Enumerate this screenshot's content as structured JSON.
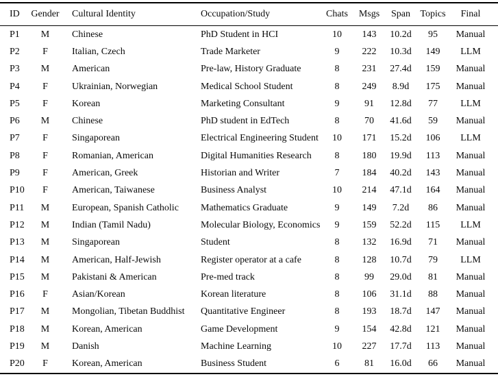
{
  "table": {
    "columns": [
      {
        "label": "ID",
        "align": "left"
      },
      {
        "label": "Gender",
        "align": "center"
      },
      {
        "label": "Cultural Identity",
        "align": "left"
      },
      {
        "label": "Occupation/Study",
        "align": "left"
      },
      {
        "label": "Chats",
        "align": "center"
      },
      {
        "label": "Msgs",
        "align": "center"
      },
      {
        "label": "Span",
        "align": "center"
      },
      {
        "label": "Topics",
        "align": "center"
      },
      {
        "label": "Final",
        "align": "center"
      }
    ],
    "rows": [
      [
        "P1",
        "M",
        "Chinese",
        "PhD Student in HCI",
        "10",
        "143",
        "10.2d",
        "95",
        "Manual"
      ],
      [
        "P2",
        "F",
        "Italian, Czech",
        "Trade Marketer",
        "9",
        "222",
        "10.3d",
        "149",
        "LLM"
      ],
      [
        "P3",
        "M",
        "American",
        "Pre-law, History Graduate",
        "8",
        "231",
        "27.4d",
        "159",
        "Manual"
      ],
      [
        "P4",
        "F",
        "Ukrainian, Norwegian",
        "Medical School Student",
        "8",
        "249",
        "8.9d",
        "175",
        "Manual"
      ],
      [
        "P5",
        "F",
        "Korean",
        "Marketing Consultant",
        "9",
        "91",
        "12.8d",
        "77",
        "LLM"
      ],
      [
        "P6",
        "M",
        "Chinese",
        "PhD student in EdTech",
        "8",
        "70",
        "41.6d",
        "59",
        "Manual"
      ],
      [
        "P7",
        "F",
        "Singaporean",
        "Electrical Engineering Student",
        "10",
        "171",
        "15.2d",
        "106",
        "LLM"
      ],
      [
        "P8",
        "F",
        "Romanian, American",
        "Digital Humanities Research",
        "8",
        "180",
        "19.9d",
        "113",
        "Manual"
      ],
      [
        "P9",
        "F",
        "American, Greek",
        "Historian and Writer",
        "7",
        "184",
        "40.2d",
        "143",
        "Manual"
      ],
      [
        "P10",
        "F",
        "American, Taiwanese",
        "Business Analyst",
        "10",
        "214",
        "47.1d",
        "164",
        "Manual"
      ],
      [
        "P11",
        "M",
        "European, Spanish Catholic",
        "Mathematics Graduate",
        "9",
        "149",
        "7.2d",
        "86",
        "Manual"
      ],
      [
        "P12",
        "M",
        "Indian (Tamil Nadu)",
        "Molecular Biology, Economics",
        "9",
        "159",
        "52.2d",
        "115",
        "LLM"
      ],
      [
        "P13",
        "M",
        "Singaporean",
        "Student",
        "8",
        "132",
        "16.9d",
        "71",
        "Manual"
      ],
      [
        "P14",
        "M",
        "American, Half-Jewish",
        "Register operator at a cafe",
        "8",
        "128",
        "10.7d",
        "79",
        "LLM"
      ],
      [
        "P15",
        "M",
        "Pakistani & American",
        "Pre-med track",
        "8",
        "99",
        "29.0d",
        "81",
        "Manual"
      ],
      [
        "P16",
        "F",
        "Asian/Korean",
        "Korean literature",
        "8",
        "106",
        "31.1d",
        "88",
        "Manual"
      ],
      [
        "P17",
        "M",
        "Mongolian, Tibetan Buddhist",
        "Quantitative Engineer",
        "8",
        "193",
        "18.7d",
        "147",
        "Manual"
      ],
      [
        "P18",
        "M",
        "Korean, American",
        "Game Development",
        "9",
        "154",
        "42.8d",
        "121",
        "Manual"
      ],
      [
        "P19",
        "M",
        "Danish",
        "Machine Learning",
        "10",
        "227",
        "17.7d",
        "113",
        "Manual"
      ],
      [
        "P20",
        "F",
        "Korean, American",
        "Business Student",
        "6",
        "81",
        "16.0d",
        "66",
        "Manual"
      ]
    ]
  }
}
